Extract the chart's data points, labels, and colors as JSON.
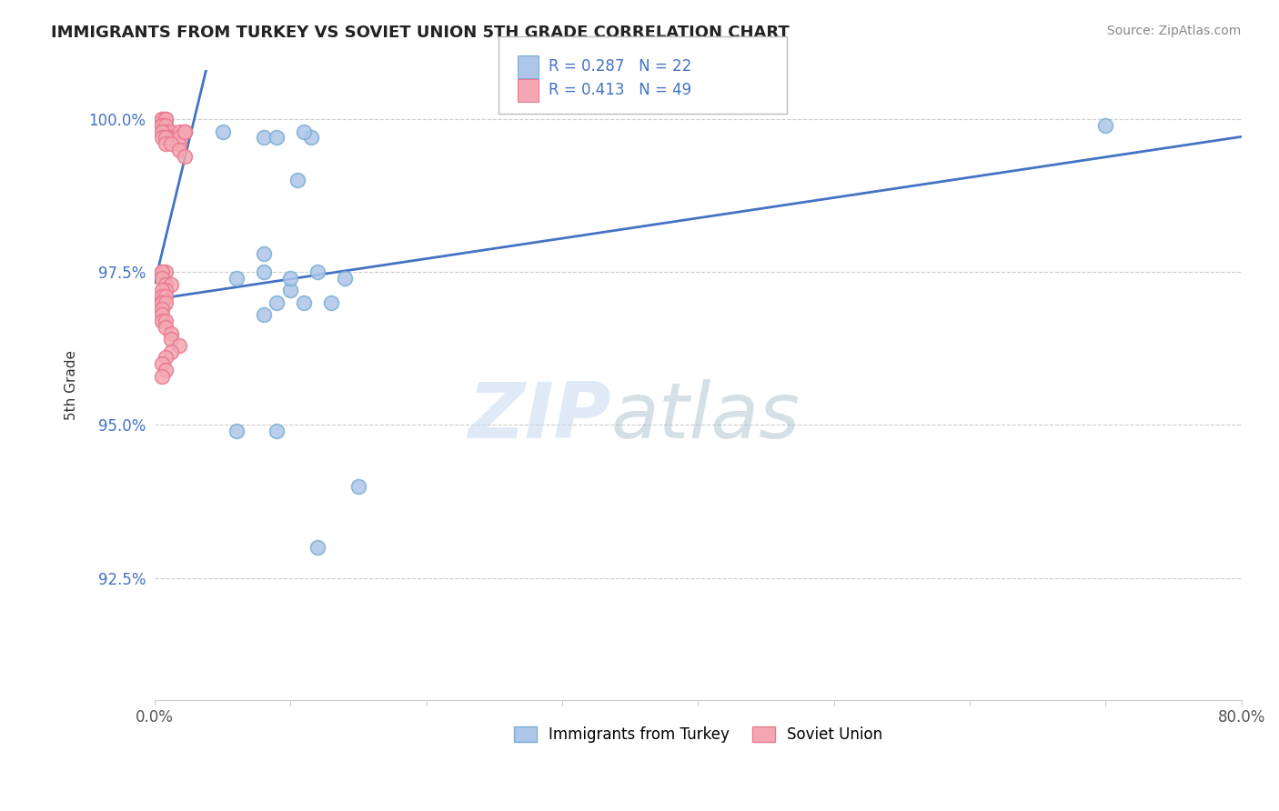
{
  "title": "IMMIGRANTS FROM TURKEY VS SOVIET UNION 5TH GRADE CORRELATION CHART",
  "source_text": "Source: ZipAtlas.com",
  "xlabel": "",
  "ylabel": "5th Grade",
  "xlim": [
    0.0,
    0.8
  ],
  "ylim": [
    0.905,
    1.008
  ],
  "yticks": [
    0.925,
    0.95,
    0.975,
    1.0
  ],
  "ytick_labels": [
    "92.5%",
    "95.0%",
    "97.5%",
    "100.0%"
  ],
  "xticks": [
    0.0,
    0.1,
    0.2,
    0.3,
    0.4,
    0.5,
    0.6,
    0.7,
    0.8
  ],
  "xtick_labels": [
    "0.0%",
    "",
    "",
    "",
    "",
    "",
    "",
    "",
    "80.0%"
  ],
  "turkey_color": "#aec6e8",
  "soviet_color": "#f4a7b3",
  "turkey_edge": "#7aafd4",
  "soviet_edge": "#e87a90",
  "turkey_R": 0.287,
  "turkey_N": 22,
  "soviet_R": 0.413,
  "soviet_N": 49,
  "trend_color": "#4472c4",
  "legend_R_color": "#4472c4",
  "watermark_zip": "ZIP",
  "watermark_atlas": "atlas",
  "turkey_x": [
    0.05,
    0.08,
    0.105,
    0.115,
    0.08,
    0.08,
    0.09,
    0.06,
    0.09,
    0.11,
    0.13,
    0.1,
    0.08,
    0.11,
    0.7,
    0.06,
    0.09,
    0.12,
    0.15,
    0.1,
    0.12,
    0.14
  ],
  "turkey_y": [
    0.998,
    0.997,
    0.99,
    0.997,
    0.978,
    0.975,
    0.97,
    0.974,
    0.997,
    0.998,
    0.97,
    0.972,
    0.968,
    0.97,
    0.999,
    0.949,
    0.949,
    0.93,
    0.94,
    0.974,
    0.975,
    0.974
  ],
  "soviet_x": [
    0.005,
    0.005,
    0.008,
    0.008,
    0.005,
    0.005,
    0.008,
    0.008,
    0.012,
    0.012,
    0.015,
    0.018,
    0.018,
    0.018,
    0.022,
    0.022,
    0.005,
    0.005,
    0.008,
    0.008,
    0.012,
    0.018,
    0.022,
    0.005,
    0.008,
    0.005,
    0.005,
    0.008,
    0.012,
    0.008,
    0.005,
    0.005,
    0.008,
    0.005,
    0.005,
    0.008,
    0.005,
    0.005,
    0.005,
    0.008,
    0.008,
    0.012,
    0.012,
    0.018,
    0.012,
    0.008,
    0.005,
    0.008,
    0.005
  ],
  "soviet_y": [
    1.0,
    1.0,
    1.0,
    1.0,
    0.999,
    0.999,
    0.999,
    0.998,
    0.998,
    0.997,
    0.997,
    0.998,
    0.996,
    0.997,
    0.998,
    0.998,
    0.998,
    0.997,
    0.997,
    0.996,
    0.996,
    0.995,
    0.994,
    0.975,
    0.975,
    0.975,
    0.974,
    0.973,
    0.973,
    0.972,
    0.972,
    0.971,
    0.971,
    0.97,
    0.97,
    0.97,
    0.969,
    0.968,
    0.967,
    0.967,
    0.966,
    0.965,
    0.964,
    0.963,
    0.962,
    0.961,
    0.96,
    0.959,
    0.958
  ]
}
